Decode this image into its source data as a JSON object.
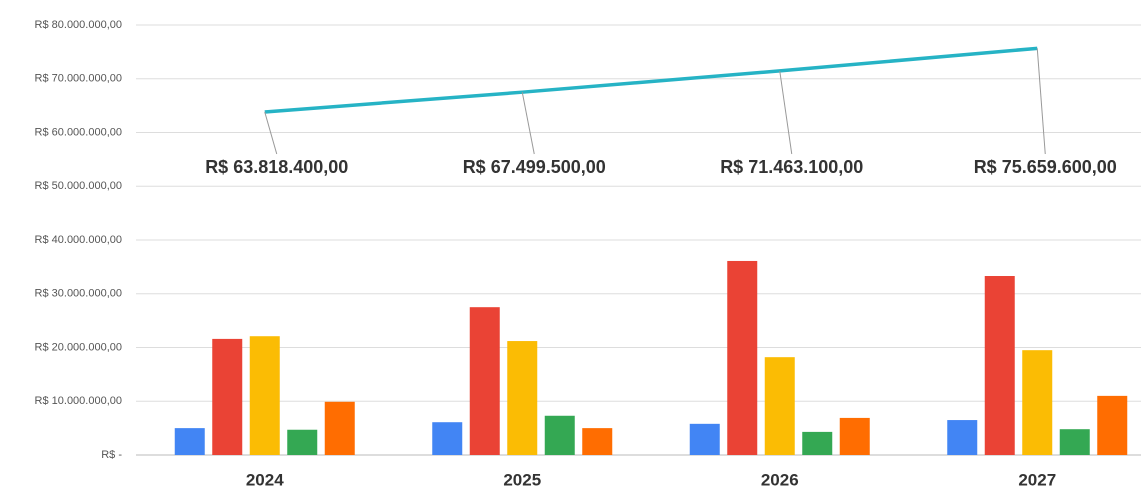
{
  "chart_data": {
    "type": "bar",
    "categories": [
      "2024",
      "2025",
      "2026",
      "2027"
    ],
    "series": [
      {
        "color": "#4285f4",
        "values": [
          5000000,
          6100000,
          5800000,
          6500000
        ]
      },
      {
        "color": "#ea4335",
        "values": [
          21600000,
          27500000,
          36100000,
          33300000
        ]
      },
      {
        "color": "#fbbc04",
        "values": [
          22100000,
          21200000,
          18200000,
          19500000
        ]
      },
      {
        "color": "#34a853",
        "values": [
          4700000,
          7300000,
          4300000,
          4800000
        ]
      },
      {
        "color": "#ff6d01",
        "values": [
          9900000,
          5000000,
          6900000,
          11000000
        ]
      },
      {
        "type": "line",
        "color": "#26b3c5",
        "values": [
          63818400,
          67499500,
          71463100,
          75659600
        ],
        "value_labels": [
          "R$ 63.818.400,00",
          "R$ 67.499.500,00",
          "R$ 71.463.100,00",
          "R$ 75.659.600,00"
        ]
      }
    ],
    "ylim": [
      0,
      80000000
    ],
    "yticks": [
      {
        "value": 0,
        "label": "R$ -"
      },
      {
        "value": 10000000,
        "label": "R$ 10.000.000,00"
      },
      {
        "value": 20000000,
        "label": "R$ 20.000.000,00"
      },
      {
        "value": 30000000,
        "label": "R$ 30.000.000,00"
      },
      {
        "value": 40000000,
        "label": "R$ 40.000.000,00"
      },
      {
        "value": 50000000,
        "label": "R$ 50.000.000,00"
      },
      {
        "value": 60000000,
        "label": "R$ 60.000.000,00"
      },
      {
        "value": 70000000,
        "label": "R$ 70.000.000,00"
      },
      {
        "value": 80000000,
        "label": "R$ 80.000.000,00"
      }
    ],
    "grid": true
  }
}
